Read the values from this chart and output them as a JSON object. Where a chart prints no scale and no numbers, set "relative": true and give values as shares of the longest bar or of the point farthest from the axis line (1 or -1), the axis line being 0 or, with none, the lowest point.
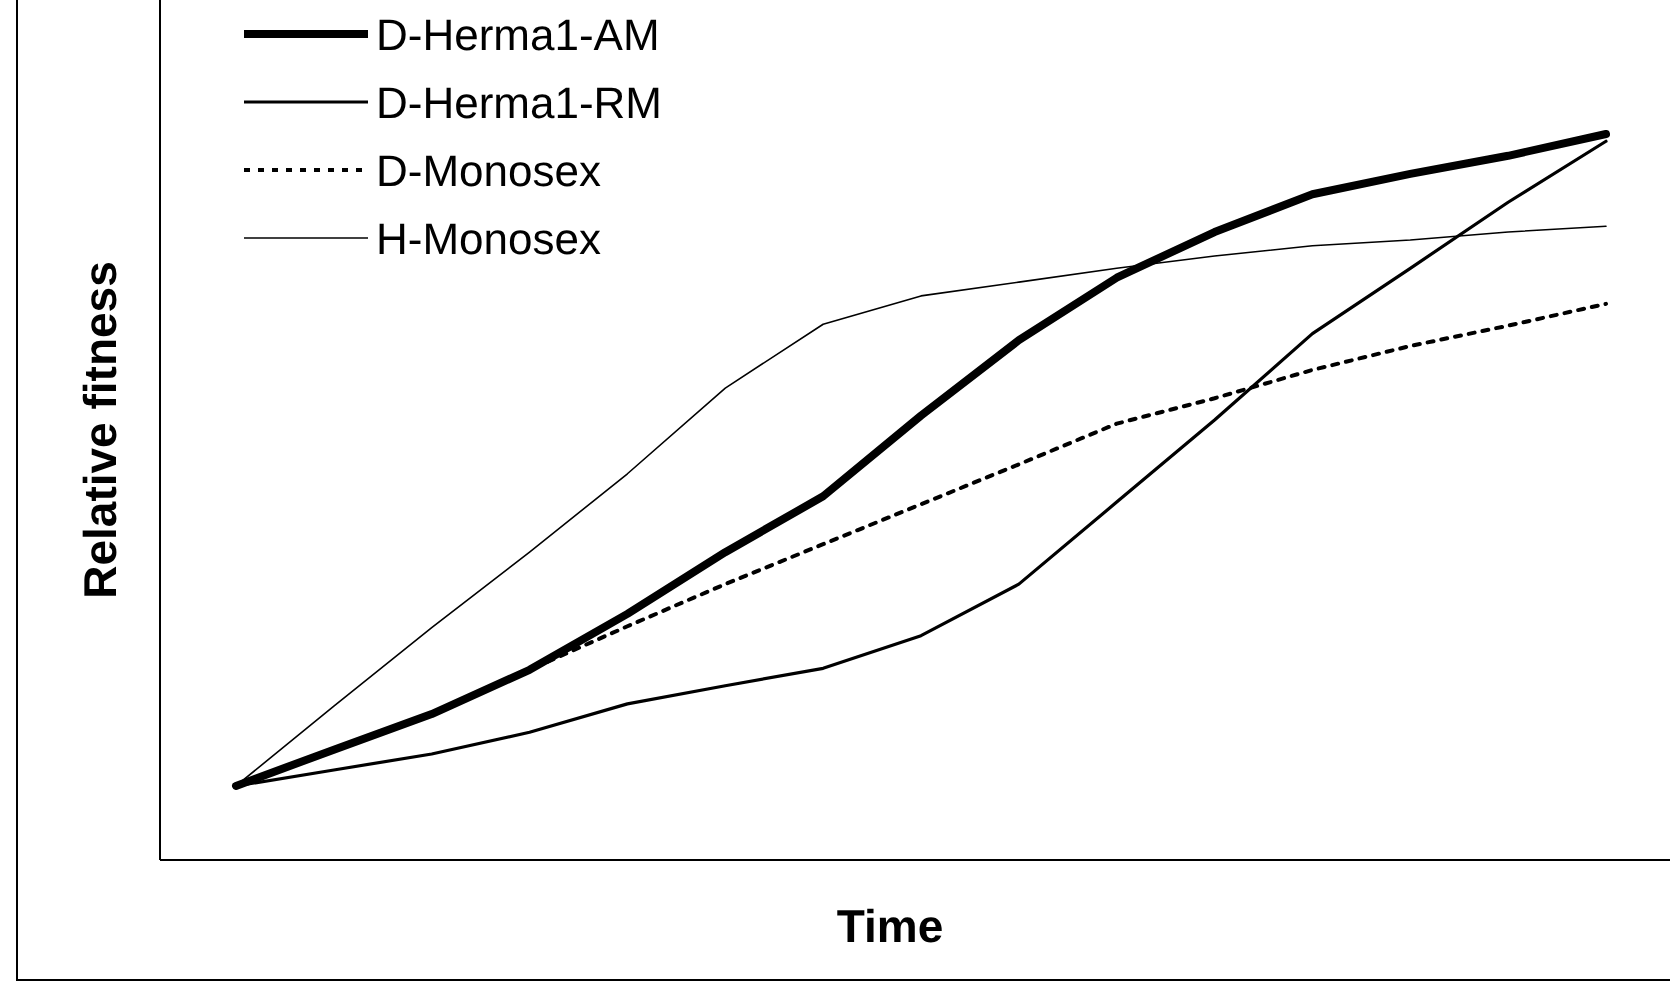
{
  "chart_data": {
    "type": "line",
    "relative": true,
    "xlabel": "Time",
    "ylabel": "Relative fitness",
    "legend": "top left",
    "marker": "none",
    "categories": [
      null,
      null,
      null,
      null,
      null,
      null,
      null,
      null,
      null,
      null,
      null,
      null,
      null,
      null,
      null
    ],
    "series": [
      {
        "name": "D-Herma1-AM",
        "color": "#000000",
        "line_style": "solid",
        "values": [
          0.102,
          0.152,
          0.201,
          0.262,
          0.339,
          0.424,
          0.501,
          0.612,
          0.716,
          0.802,
          0.865,
          0.917,
          0.945,
          0.97,
          1
        ]
      },
      {
        "name": "D-Herma1-RM",
        "color": "#000000",
        "line_style": "solid",
        "values": [
          0.102,
          0.124,
          0.146,
          0.176,
          0.215,
          0.24,
          0.264,
          0.309,
          0.38,
          0.493,
          0.606,
          0.725,
          0.815,
          0.906,
          0.99
        ]
      },
      {
        "name": "D-Monosex",
        "color": "#000000",
        "line_style": "dotted",
        "values": [
          0.102,
          0.152,
          0.201,
          0.262,
          0.322,
          0.38,
          0.435,
          0.49,
          0.545,
          0.601,
          0.636,
          0.675,
          0.708,
          0.736,
          0.766
        ]
      },
      {
        "name": "H-Monosex",
        "color": "#000000",
        "line_style": "solid",
        "values": [
          0.102,
          0.212,
          0.32,
          0.424,
          0.532,
          0.65,
          0.738,
          0.777,
          0.796,
          0.815,
          0.832,
          0.846,
          0.854,
          0.865,
          0.873
        ]
      }
    ]
  }
}
